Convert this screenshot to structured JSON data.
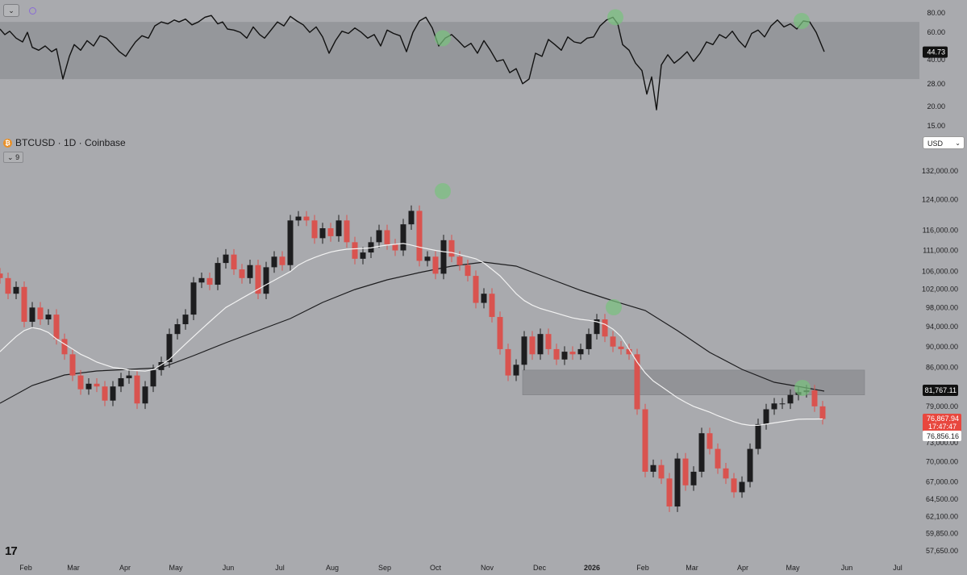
{
  "header": {
    "symbol_title": "BTCUSD · 1D · Coinbase",
    "indicator_count": "9",
    "currency": "USD",
    "logo_text": "17"
  },
  "colors": {
    "background": "#a9aaae",
    "candle_up": "#1d1d1f",
    "candle_down": "#d9534f",
    "ma_fast": "#f2f2f2",
    "ma_slow": "#1d1d1f",
    "rsi_line": "#111111",
    "zone_fill": "#8f9094",
    "peak_marker": "#79c27e",
    "price_badge": "#e8473e"
  },
  "chart_data": [
    {
      "type": "line",
      "name": "rsi",
      "y_ticks": [
        "80.00",
        "60.00",
        "40.00",
        "28.00",
        "20.00",
        "15.00"
      ],
      "tick_values": [
        80,
        60,
        40,
        28,
        20,
        15
      ],
      "band": [
        30,
        70
      ],
      "current_value": "44.73",
      "x": [
        0,
        6,
        12,
        20,
        28,
        34,
        40,
        48,
        56,
        64,
        70,
        78,
        86,
        92,
        100,
        108,
        116,
        124,
        132,
        140,
        148,
        156,
        162,
        168,
        176,
        184,
        192,
        200,
        208,
        216,
        222,
        230,
        238,
        246,
        254,
        262,
        270,
        276,
        282,
        290,
        298,
        306,
        314,
        322,
        328,
        336,
        344,
        352,
        360,
        368,
        376,
        384,
        392,
        400,
        408,
        416,
        424,
        432,
        440,
        448,
        456,
        464,
        472,
        480,
        488,
        496,
        504,
        512,
        520,
        528,
        536,
        544,
        552,
        560,
        568,
        576,
        584,
        592,
        600,
        608,
        616,
        624,
        632,
        640,
        648,
        656,
        664,
        672,
        680,
        688,
        696,
        704,
        712,
        720,
        728,
        736,
        744,
        752,
        760,
        766,
        772,
        780,
        788,
        796,
        802,
        808,
        814,
        820,
        828,
        836,
        844,
        852,
        860,
        868,
        876,
        884,
        892,
        900,
        908,
        916,
        924,
        932,
        940,
        948,
        956,
        964,
        972,
        980,
        988,
        996,
        1004,
        1012,
        1022
      ],
      "y": [
        63,
        58,
        61,
        55,
        52,
        60,
        48,
        46,
        49,
        45,
        47,
        30,
        42,
        50,
        46,
        53,
        49,
        57,
        55,
        50,
        45,
        42,
        47,
        52,
        57,
        55,
        66,
        70,
        68,
        72,
        70,
        73,
        67,
        70,
        75,
        77,
        68,
        70,
        63,
        62,
        60,
        55,
        65,
        58,
        55,
        62,
        70,
        66,
        76,
        71,
        67,
        60,
        65,
        56,
        44,
        53,
        61,
        59,
        64,
        60,
        55,
        58,
        49,
        62,
        59,
        57,
        45,
        60,
        71,
        75,
        64,
        49,
        55,
        58,
        53,
        48,
        51,
        44,
        53,
        46,
        39,
        40,
        33,
        35,
        28,
        30,
        44,
        42,
        54,
        50,
        46,
        56,
        52,
        51,
        55,
        56,
        66,
        72,
        75,
        68,
        50,
        46,
        38,
        34,
        24,
        31,
        19,
        37,
        43,
        38,
        41,
        45,
        39,
        44,
        52,
        50,
        58,
        55,
        61,
        53,
        48,
        59,
        62,
        56,
        66,
        72,
        65,
        68,
        63,
        71,
        70,
        60,
        45
      ]
    },
    {
      "type": "candlestick",
      "name": "BTCUSD",
      "xlabel": "",
      "ylabel": "",
      "x_ticks": [
        "Feb",
        "Mar",
        "Apr",
        "May",
        "Jun",
        "Jul",
        "Aug",
        "Sep",
        "Oct",
        "Nov",
        "Dec",
        "2026",
        "Feb",
        "Mar",
        "Apr",
        "May",
        "Jun",
        "Jul"
      ],
      "y_ticks": [
        "132,000.00",
        "124,000.00",
        "116,000.00",
        "111,000.00",
        "106,000.00",
        "102,000.00",
        "98,000.00",
        "94,000.00",
        "90,000.00",
        "86,000.00",
        "79,000.00",
        "73,000.00",
        "70,000.00",
        "67,000.00",
        "64,500.00",
        "62,100.00",
        "59,850.00",
        "57,650.00"
      ],
      "tick_values": [
        132000,
        124000,
        116000,
        111000,
        106000,
        102000,
        98000,
        94000,
        90000,
        86000,
        79000,
        73000,
        70000,
        67000,
        64500,
        62100,
        59850,
        57650
      ],
      "zone": [
        81000,
        85500
      ],
      "x": [
        0,
        10,
        20,
        30,
        40,
        50,
        60,
        70,
        80,
        90,
        100,
        110,
        120,
        130,
        140,
        150,
        160,
        170,
        180,
        190,
        200,
        210,
        220,
        230,
        240,
        250,
        260,
        270,
        280,
        290,
        300,
        310,
        320,
        330,
        340,
        350,
        360,
        370,
        380,
        390,
        400,
        410,
        420,
        430,
        440,
        450,
        460,
        470,
        480,
        490,
        500,
        510,
        520,
        530,
        540,
        550,
        560,
        570,
        580,
        590,
        600,
        610,
        620,
        630,
        640,
        650,
        660,
        670,
        680,
        690,
        700,
        710,
        720,
        730,
        740,
        750,
        760,
        770,
        780,
        790,
        800,
        810,
        820,
        830,
        840,
        850,
        860,
        870,
        880,
        890,
        900,
        910,
        920,
        930,
        940,
        950,
        960,
        970,
        980,
        990,
        1000,
        1010,
        1020
      ],
      "close": [
        104500,
        101000,
        102500,
        95000,
        98000,
        95500,
        96500,
        91500,
        88500,
        84500,
        82000,
        83000,
        82500,
        80000,
        82500,
        84000,
        84500,
        79500,
        82500,
        85500,
        87000,
        92500,
        94500,
        96500,
        103500,
        104500,
        103000,
        108000,
        110000,
        106500,
        104500,
        107500,
        101000,
        107000,
        109500,
        107500,
        118500,
        119500,
        118500,
        114000,
        116500,
        114500,
        118500,
        113000,
        109000,
        110500,
        113000,
        116000,
        112500,
        111000,
        117500,
        121000,
        108500,
        109500,
        105500,
        113500,
        109500,
        107500,
        105000,
        99000,
        101000,
        96000,
        89500,
        84500,
        86500,
        92000,
        88500,
        92500,
        89500,
        87500,
        89000,
        88500,
        89500,
        92500,
        95500,
        92000,
        90000,
        89500,
        88500,
        78500,
        68500,
        69500,
        67500,
        63500,
        70500,
        66500,
        68500,
        74500,
        72000,
        69000,
        67500,
        65500,
        67000,
        72000,
        76000,
        78500,
        79500,
        79500,
        81000,
        81500,
        81800,
        79000,
        76860
      ],
      "ma_fast": [
        89000,
        90500,
        92000,
        93200,
        93800,
        93500,
        92800,
        91500,
        90500,
        89500,
        88500,
        87800,
        87000,
        86500,
        86000,
        85800,
        85500,
        85400,
        85300,
        85600,
        86500,
        87500,
        89000,
        90500,
        92000,
        93500,
        95000,
        96500,
        98000,
        99000,
        100000,
        101000,
        102000,
        103000,
        104000,
        105000,
        106000,
        107500,
        108500,
        109300,
        110000,
        110600,
        111000,
        111300,
        111400,
        111500,
        111600,
        112000,
        112300,
        112500,
        112700,
        112300,
        111800,
        111400,
        111000,
        110700,
        110500,
        110000,
        109500,
        109000,
        108000,
        106500,
        105000,
        103000,
        101000,
        99500,
        98500,
        97800,
        97300,
        96800,
        96300,
        95800,
        95500,
        95300,
        95000,
        94500,
        93500,
        92000,
        89500,
        87000,
        85000,
        83500,
        82500,
        81500,
        80500,
        79700,
        79000,
        78500,
        78000,
        77400,
        76900,
        76400,
        76000,
        75800,
        75800,
        76000,
        76200,
        76400,
        76600,
        76800,
        76850,
        76850,
        76856
      ]
    }
  ],
  "price_axis": {
    "rsi_label": "44.73",
    "ma_slow_label": "81,767.11",
    "ma_fast_label": "76,856.16",
    "last_price_label": "76,867.94",
    "countdown_label": "17:47:47"
  }
}
